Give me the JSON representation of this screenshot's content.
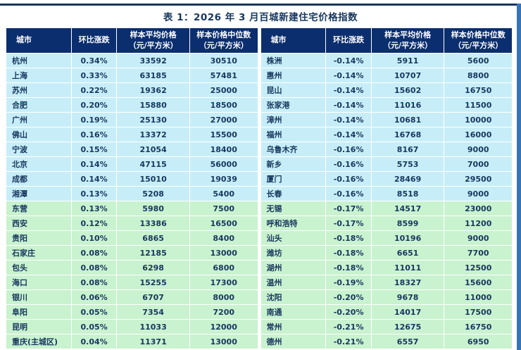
{
  "title": "表 1：2026 年 3 月百城新建住宅价格指数",
  "columns": [
    {
      "line1": "城市",
      "line2": ""
    },
    {
      "line1": "环比涨跌",
      "line2": ""
    },
    {
      "line1": "样本平均价格",
      "line2": "（元/平方米）"
    },
    {
      "line1": "样本价格中位数",
      "line2": "（元/平方米）"
    }
  ],
  "cyan_rows_count": 10,
  "colors": {
    "header_bg": "#0b2e6e",
    "cyan_row": "#c7eef8",
    "green_row": "#c9f2cf",
    "text": "#17375e",
    "rule": "#17365d",
    "edge_strip": "#3575b5"
  },
  "left_rows": [
    {
      "city": "杭州",
      "change": "0.34%",
      "avg": "33592",
      "median": "30510"
    },
    {
      "city": "上海",
      "change": "0.33%",
      "avg": "63185",
      "median": "57481"
    },
    {
      "city": "苏州",
      "change": "0.22%",
      "avg": "19362",
      "median": "25000"
    },
    {
      "city": "合肥",
      "change": "0.20%",
      "avg": "15880",
      "median": "18500"
    },
    {
      "city": "广州",
      "change": "0.19%",
      "avg": "25130",
      "median": "27000"
    },
    {
      "city": "佛山",
      "change": "0.16%",
      "avg": "13372",
      "median": "15500"
    },
    {
      "city": "宁波",
      "change": "0.15%",
      "avg": "21054",
      "median": "18400"
    },
    {
      "city": "北京",
      "change": "0.14%",
      "avg": "47115",
      "median": "56000"
    },
    {
      "city": "成都",
      "change": "0.14%",
      "avg": "15010",
      "median": "19039"
    },
    {
      "city": "湘潭",
      "change": "0.13%",
      "avg": "5208",
      "median": "5400"
    },
    {
      "city": "东营",
      "change": "0.13%",
      "avg": "5980",
      "median": "7500"
    },
    {
      "city": "西安",
      "change": "0.12%",
      "avg": "13386",
      "median": "16500"
    },
    {
      "city": "贵阳",
      "change": "0.10%",
      "avg": "6865",
      "median": "8400"
    },
    {
      "city": "石家庄",
      "change": "0.08%",
      "avg": "12185",
      "median": "13000"
    },
    {
      "city": "包头",
      "change": "0.08%",
      "avg": "6298",
      "median": "6800"
    },
    {
      "city": "海口",
      "change": "0.08%",
      "avg": "15255",
      "median": "17300"
    },
    {
      "city": "银川",
      "change": "0.06%",
      "avg": "6707",
      "median": "8000"
    },
    {
      "city": "阜阳",
      "change": "0.05%",
      "avg": "7354",
      "median": "7200"
    },
    {
      "city": "昆明",
      "change": "0.05%",
      "avg": "11033",
      "median": "12000"
    },
    {
      "city": "重庆(主城区)",
      "change": "0.04%",
      "avg": "11371",
      "median": "13000"
    }
  ],
  "right_rows": [
    {
      "city": "株洲",
      "change": "-0.14%",
      "avg": "5911",
      "median": "5600"
    },
    {
      "city": "惠州",
      "change": "-0.14%",
      "avg": "10707",
      "median": "8800"
    },
    {
      "city": "昆山",
      "change": "-0.14%",
      "avg": "15602",
      "median": "16750"
    },
    {
      "city": "张家港",
      "change": "-0.14%",
      "avg": "11016",
      "median": "11500"
    },
    {
      "city": "漳州",
      "change": "-0.14%",
      "avg": "10681",
      "median": "10000"
    },
    {
      "city": "福州",
      "change": "-0.14%",
      "avg": "16768",
      "median": "16000"
    },
    {
      "city": "乌鲁木齐",
      "change": "-0.16%",
      "avg": "8167",
      "median": "9000"
    },
    {
      "city": "新乡",
      "change": "-0.16%",
      "avg": "5753",
      "median": "7000"
    },
    {
      "city": "厦门",
      "change": "-0.16%",
      "avg": "28469",
      "median": "29500"
    },
    {
      "city": "长春",
      "change": "-0.16%",
      "avg": "8518",
      "median": "9000"
    },
    {
      "city": "无锡",
      "change": "-0.17%",
      "avg": "14517",
      "median": "23000"
    },
    {
      "city": "呼和浩特",
      "change": "-0.17%",
      "avg": "8599",
      "median": "11200"
    },
    {
      "city": "汕头",
      "change": "-0.18%",
      "avg": "10196",
      "median": "9000"
    },
    {
      "city": "潍坊",
      "change": "-0.18%",
      "avg": "6651",
      "median": "7700"
    },
    {
      "city": "湖州",
      "change": "-0.18%",
      "avg": "11011",
      "median": "12500"
    },
    {
      "city": "温州",
      "change": "-0.19%",
      "avg": "18327",
      "median": "15600"
    },
    {
      "city": "沈阳",
      "change": "-0.20%",
      "avg": "9678",
      "median": "11000"
    },
    {
      "city": "南通",
      "change": "-0.20%",
      "avg": "14017",
      "median": "17500"
    },
    {
      "city": "常州",
      "change": "-0.21%",
      "avg": "12675",
      "median": "16750"
    },
    {
      "city": "德州",
      "change": "-0.21%",
      "avg": "6557",
      "median": "6950"
    }
  ]
}
